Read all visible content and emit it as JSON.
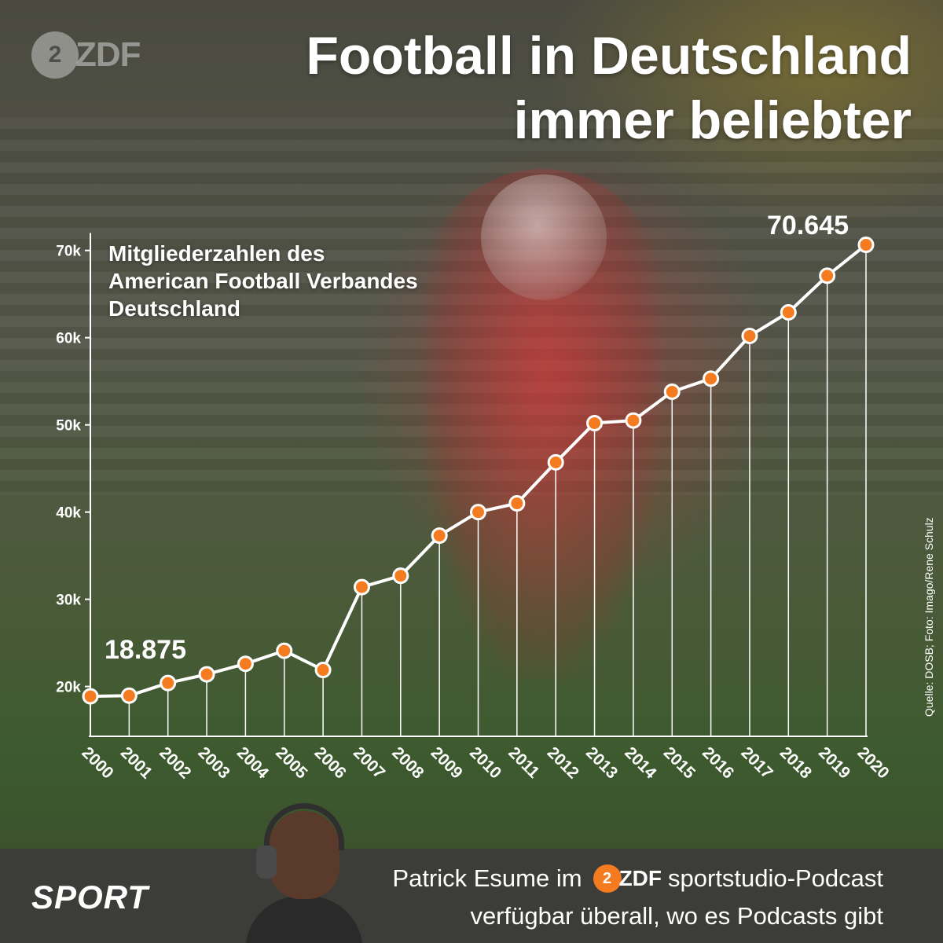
{
  "header": {
    "logo_text": "ZDF",
    "title_line1": "Football in Deutschland",
    "title_line2": "immer beliebter"
  },
  "chart_data": {
    "type": "line",
    "title": "Football in Deutschland immer beliebter",
    "subtitle_lines": [
      "Mitgliederzahlen des",
      "American Football Verbandes",
      "Deutschland"
    ],
    "x": [
      2000,
      2001,
      2002,
      2003,
      2004,
      2005,
      2006,
      2007,
      2008,
      2009,
      2010,
      2011,
      2012,
      2013,
      2014,
      2015,
      2016,
      2017,
      2018,
      2019,
      2020
    ],
    "x_tick_labels": [
      "2000",
      "2001",
      "2002",
      "2003",
      "2004",
      "2005",
      "2006",
      "2007",
      "2008",
      "2009",
      "2010",
      "2011",
      "2012",
      "2013",
      "2014",
      "2015",
      "2016",
      "2017",
      "2018",
      "2019",
      "2020"
    ],
    "series": [
      {
        "values": [
          18875,
          18950,
          20400,
          21400,
          22600,
          24100,
          21900,
          31400,
          32700,
          37300,
          40000,
          41000,
          45700,
          50200,
          50500,
          53800,
          55300,
          60200,
          62900,
          67100,
          70645
        ]
      }
    ],
    "y_ticks": [
      20000,
      30000,
      40000,
      50000,
      60000,
      70000
    ],
    "y_tick_labels": [
      "20k",
      "30k",
      "40k",
      "50k",
      "60k",
      "70k"
    ],
    "ylim": [
      15000,
      72000
    ],
    "annotations": [
      {
        "x": 2000,
        "text": "18.875"
      },
      {
        "x": 2020,
        "text": "70.645"
      }
    ],
    "grid": false,
    "line_color": "#ffffff",
    "marker_color": "#f47b20",
    "marker_edge_color": "#ffffff"
  },
  "credit": "Quelle: DOSB; Foto: Imago/Rene Schulz",
  "footer": {
    "sport_label": "SPORT",
    "podcast_line1_before": "Patrick Esume im",
    "podcast_logo_text": "ZDF",
    "podcast_line1_after": "sportstudio-Podcast",
    "podcast_line2": "verfügbar überall, wo es Podcasts gibt",
    "accent_color": "#f47b20",
    "footer_bg": "#3c3c3a"
  }
}
